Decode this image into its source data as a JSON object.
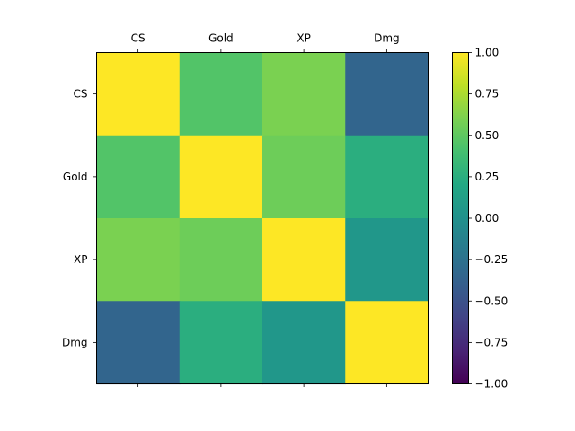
{
  "chart_data": {
    "type": "heatmap",
    "x_categories": [
      "CS",
      "Gold",
      "XP",
      "Dmg"
    ],
    "y_categories": [
      "CS",
      "Gold",
      "XP",
      "Dmg"
    ],
    "values": [
      [
        1.0,
        0.45,
        0.6,
        -0.35
      ],
      [
        0.45,
        1.0,
        0.55,
        0.25
      ],
      [
        0.6,
        0.55,
        1.0,
        0.05
      ],
      [
        -0.35,
        0.25,
        0.05,
        1.0
      ]
    ],
    "colorbar": {
      "min": -1.0,
      "max": 1.0,
      "ticks": [
        1.0,
        0.75,
        0.5,
        0.25,
        0.0,
        -0.25,
        -0.5,
        -0.75,
        -1.0
      ],
      "tick_labels": [
        "1.00",
        "0.75",
        "0.50",
        "0.25",
        "0.00",
        "−0.25",
        "−0.50",
        "−0.75",
        "−1.00"
      ],
      "colormap": "viridis"
    },
    "x_tick_position": "top",
    "grid": false
  }
}
